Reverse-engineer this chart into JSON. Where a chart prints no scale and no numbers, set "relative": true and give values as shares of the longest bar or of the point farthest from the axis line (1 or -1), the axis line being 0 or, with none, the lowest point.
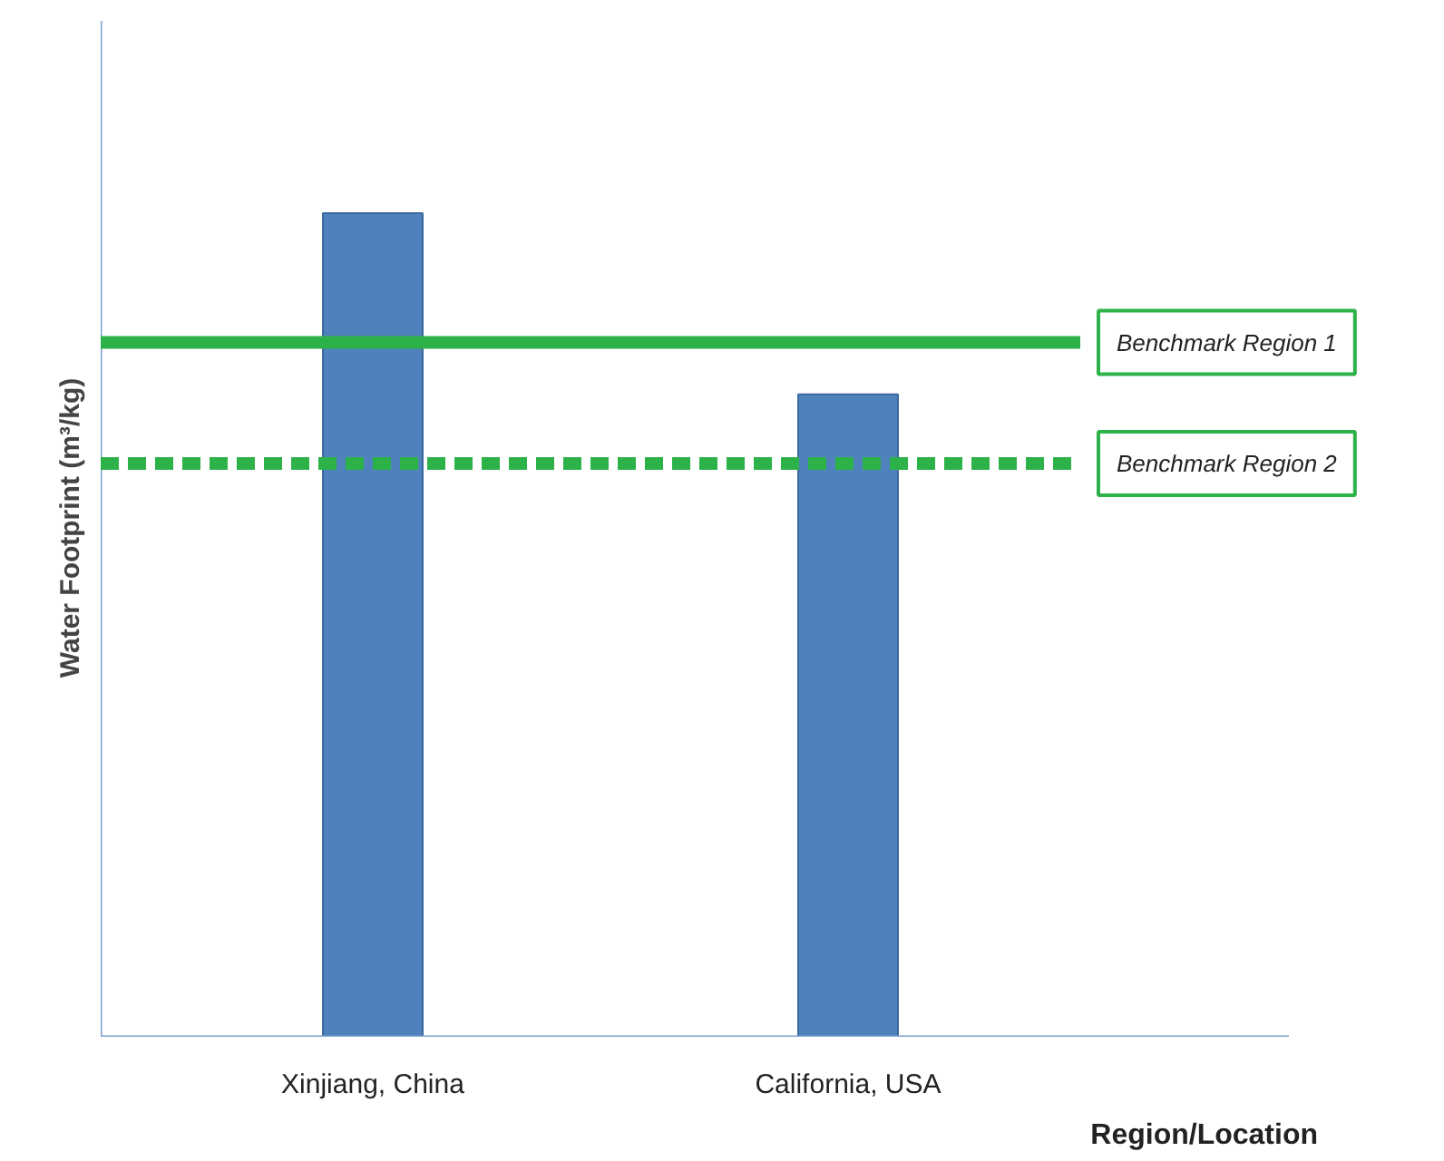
{
  "chart_data": {
    "type": "bar",
    "xlabel": "Region/Location",
    "ylabel": "Water Footprint (m³/kg)",
    "categories": [
      "Xinjiang, China",
      "California, USA"
    ],
    "values": [
      1,
      0.78
    ],
    "color": "#4f81bd",
    "relative": true,
    "grid": false,
    "legend": false,
    "ref_lines": [
      {
        "axis": "y",
        "value": 0.843,
        "label": "Benchmark Region 1",
        "color": "#2db24a",
        "line_style": "solid"
      },
      {
        "axis": "y",
        "value": 0.696,
        "label": "Benchmark Region 2",
        "color": "#2db24a",
        "line_style": "dashed"
      }
    ]
  }
}
